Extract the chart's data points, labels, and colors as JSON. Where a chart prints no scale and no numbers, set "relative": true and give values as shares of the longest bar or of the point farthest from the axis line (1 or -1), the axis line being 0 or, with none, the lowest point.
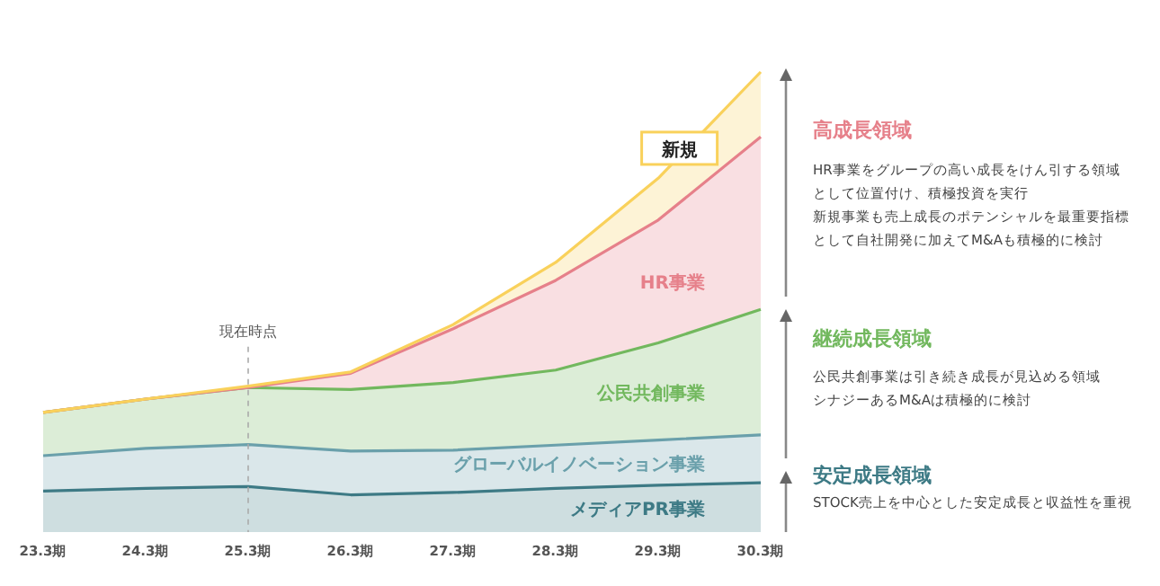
{
  "chart_data": {
    "type": "area",
    "stacked": true,
    "relative": true,
    "categories": [
      "23.3期",
      "24.3期",
      "25.3期",
      "26.3期",
      "27.3期",
      "28.3期",
      "29.3期",
      "30.3期"
    ],
    "series": [
      {
        "name": "メディアPR事業",
        "color": "#3d7a85",
        "values": [
          0.089,
          0.095,
          0.099,
          0.081,
          0.086,
          0.095,
          0.102,
          0.107
        ]
      },
      {
        "name": "グローバルイノベーション事業",
        "color": "#6aa0ab",
        "values": [
          0.077,
          0.087,
          0.091,
          0.095,
          0.092,
          0.094,
          0.098,
          0.104
        ]
      },
      {
        "name": "公民共創事業",
        "color": "#72b85e",
        "values": [
          0.094,
          0.107,
          0.124,
          0.134,
          0.147,
          0.163,
          0.211,
          0.273
        ]
      },
      {
        "name": "HR事業",
        "color": "#e6808a",
        "values": [
          0,
          0,
          0,
          0.035,
          0.117,
          0.195,
          0.267,
          0.375
        ]
      },
      {
        "name": "新規",
        "color": "#f9d15b",
        "values": [
          0,
          0,
          0.003,
          0.003,
          0.009,
          0.039,
          0.091,
          0.141
        ]
      }
    ],
    "ref_lines": [
      {
        "axis": "x",
        "value": "25.3期",
        "label": "現在時点",
        "line_style": "dashed",
        "color": "#aaaaaa"
      }
    ],
    "annotations": [
      "高成長領域",
      "HR事業をグループの高い成長をけん引する領域",
      "として位置付け、積極投資を実行",
      "新規事業も売上成長のポテンシャルを最重要指標",
      "として自社開発に加えてM&Aも積極的に検討",
      "継続成長領域",
      "公民共創事業は引き続き成長が見込める領域",
      "シナジーあるM&Aは積極的に検討",
      "安定成長領域",
      "STOCK売上を中心とした安定成長と収益性を重視"
    ]
  }
}
